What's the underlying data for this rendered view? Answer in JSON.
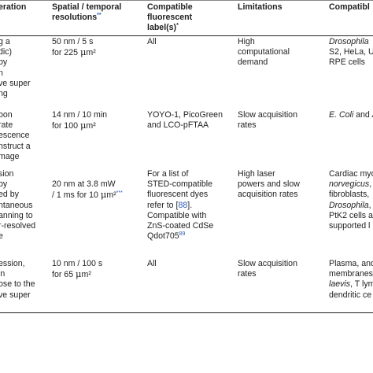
{
  "headers": {
    "col1": "eration",
    "col2_line1": "Spatial / temporal",
    "col2_line2": "resolutions",
    "col2_mark": "**",
    "col3_line1": "Compatible",
    "col3_line2": "fluorescent",
    "col3_line3": "label(s)",
    "col3_mark": "*",
    "col4": "Limitations",
    "col5": "Compatibl"
  },
  "rows": [
    {
      "col1": [
        "g a",
        "dic)",
        "by",
        "n",
        "ve super",
        "ng"
      ],
      "col2": [
        "50 nm / 5 s",
        "for 225 ",
        "μ",
        "m²"
      ],
      "col3": [
        "All"
      ],
      "col4": [
        "High",
        "computational",
        "demand"
      ],
      "col5": [
        "Drosophila",
        "S2, HeLa, U",
        "RPE cells"
      ]
    },
    {
      "col1": [
        "oon",
        "rate",
        "escence",
        "nstruct a",
        "mage"
      ],
      "col2": [
        "14 nm / 10 min",
        "for 100 ",
        "μ",
        "m²"
      ],
      "col3": [
        "YOYO-1, PicoGreen",
        "and LCO-pFTAA"
      ],
      "col4": [
        "Slow acquisition",
        "rates"
      ],
      "col5": [
        "E. Coli",
        " and "
      ]
    },
    {
      "col1": [
        "sion",
        "by",
        "ed by",
        "ntaneous",
        "anning to",
        "r-resolved",
        "e"
      ],
      "col2": [
        "20 nm at 3.8 mW",
        "/ 1 ms for 10 ",
        "μ",
        "m²",
        "***"
      ],
      "col3": [
        "For a list of",
        "STED-compatible",
        "fluorescent dyes",
        "refer to [",
        "88",
        "].",
        "Compatible with",
        "ZnS-coated CdSe",
        "Qdot705",
        "89"
      ],
      "col4": [
        "High laser",
        "powers and slow",
        "acquisition rates"
      ],
      "col5": [
        "Cardiac myo",
        "norvegicus",
        ",",
        "fibroblasts,",
        "Drosophila",
        ", I",
        "PtK2 cells a",
        "supported l"
      ]
    },
    {
      "col1": [
        "ession,",
        "in",
        "ose to the",
        "ve super"
      ],
      "col2": [
        "10 nm / 100 s",
        "for 65 ",
        "μ",
        "m²"
      ],
      "col3": [
        "All"
      ],
      "col4": [
        "Slow acquisition",
        "rates"
      ],
      "col5": [
        "Plasma, and",
        "membranes",
        "laevis",
        ", T lym",
        "dendritic ce"
      ]
    }
  ]
}
